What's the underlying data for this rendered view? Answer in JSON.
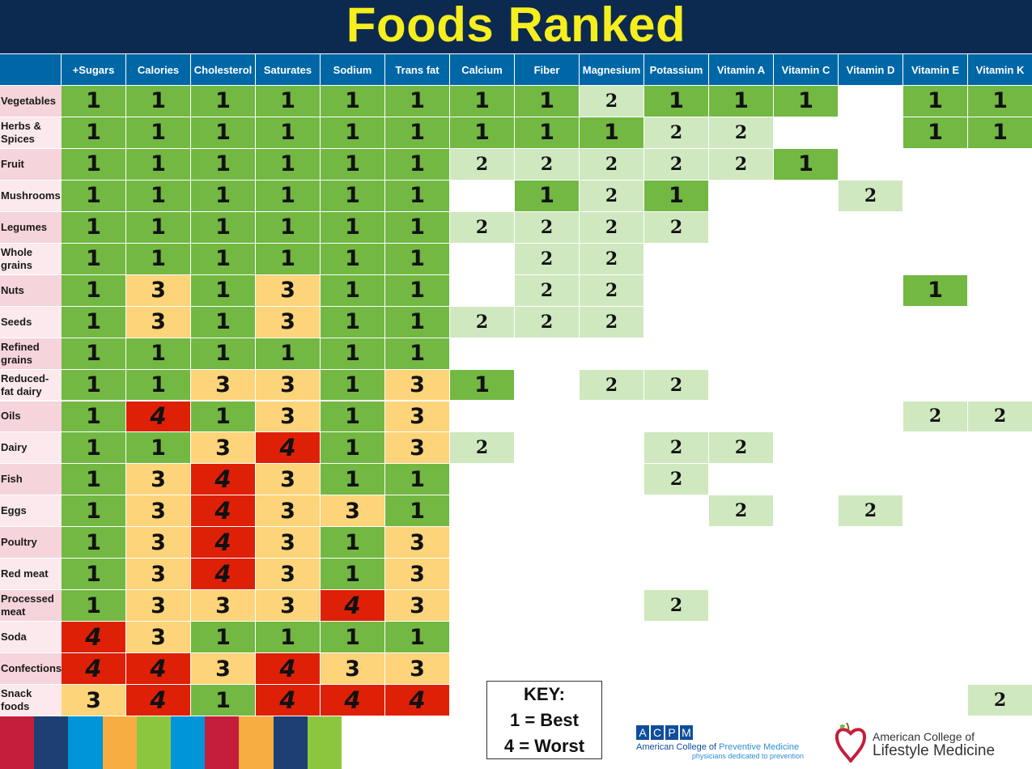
{
  "title": "Foods Ranked",
  "columns": [
    "+Sugars",
    "Calories",
    "Cholesterol",
    "Saturates",
    "Sodium",
    "Trans fat",
    "Calcium",
    "Fiber",
    "Magnesium",
    "Potassium",
    "Vitamin A",
    "Vitamin C",
    "Vitamin D",
    "Vitamin E",
    "Vitamin K"
  ],
  "rows": [
    {
      "label": "Vegetables",
      "ranks": [
        "1",
        "1",
        "1",
        "1",
        "1",
        "1",
        "1",
        "1",
        "2",
        "1",
        "1",
        "1",
        "",
        "1",
        "1"
      ]
    },
    {
      "label": "Herbs & Spices",
      "ranks": [
        "1",
        "1",
        "1",
        "1",
        "1",
        "1",
        "1",
        "1",
        "1",
        "2",
        "2",
        "",
        "",
        "1",
        "1"
      ]
    },
    {
      "label": "Fruit",
      "ranks": [
        "1",
        "1",
        "1",
        "1",
        "1",
        "1",
        "2",
        "2",
        "2",
        "2",
        "2",
        "1",
        "",
        "",
        ""
      ]
    },
    {
      "label": "Mushrooms",
      "ranks": [
        "1",
        "1",
        "1",
        "1",
        "1",
        "1",
        "",
        "1",
        "2",
        "1",
        "",
        "",
        "2",
        "",
        ""
      ]
    },
    {
      "label": "Legumes",
      "ranks": [
        "1",
        "1",
        "1",
        "1",
        "1",
        "1",
        "2",
        "2",
        "2",
        "2",
        "",
        "",
        "",
        "",
        ""
      ]
    },
    {
      "label": "Whole grains",
      "ranks": [
        "1",
        "1",
        "1",
        "1",
        "1",
        "1",
        "",
        "2",
        "2",
        "",
        "",
        "",
        "",
        "",
        ""
      ]
    },
    {
      "label": "Nuts",
      "ranks": [
        "1",
        "3",
        "1",
        "3",
        "1",
        "1",
        "",
        "2",
        "2",
        "",
        "",
        "",
        "",
        "1",
        ""
      ]
    },
    {
      "label": "Seeds",
      "ranks": [
        "1",
        "3",
        "1",
        "3",
        "1",
        "1",
        "2",
        "2",
        "2",
        "",
        "",
        "",
        "",
        "",
        ""
      ]
    },
    {
      "label": "Refined grains",
      "ranks": [
        "1",
        "1",
        "1",
        "1",
        "1",
        "1",
        "",
        "",
        "",
        "",
        "",
        "",
        "",
        "",
        ""
      ]
    },
    {
      "label": "Reduced-fat dairy",
      "ranks": [
        "1",
        "1",
        "3",
        "3",
        "1",
        "3",
        "1",
        "",
        "2",
        "2",
        "",
        "",
        "",
        "",
        ""
      ]
    },
    {
      "label": "Oils",
      "ranks": [
        "1",
        "4",
        "1",
        "3",
        "1",
        "3",
        "",
        "",
        "",
        "",
        "",
        "",
        "",
        "2",
        "2"
      ]
    },
    {
      "label": "Dairy",
      "ranks": [
        "1",
        "1",
        "3",
        "4",
        "1",
        "3",
        "2",
        "",
        "",
        "2",
        "2",
        "",
        "",
        "",
        ""
      ]
    },
    {
      "label": "Fish",
      "ranks": [
        "1",
        "3",
        "4",
        "3",
        "1",
        "1",
        "",
        "",
        "",
        "2",
        "",
        "",
        "",
        "",
        ""
      ]
    },
    {
      "label": "Eggs",
      "ranks": [
        "1",
        "3",
        "4",
        "3",
        "3",
        "1",
        "",
        "",
        "",
        "",
        "2",
        "",
        "2",
        "",
        ""
      ]
    },
    {
      "label": "Poultry",
      "ranks": [
        "1",
        "3",
        "4",
        "3",
        "1",
        "3",
        "",
        "",
        "",
        "",
        "",
        "",
        "",
        "",
        ""
      ]
    },
    {
      "label": "Red meat",
      "ranks": [
        "1",
        "3",
        "4",
        "3",
        "1",
        "3",
        "",
        "",
        "",
        "",
        "",
        "",
        "",
        "",
        ""
      ]
    },
    {
      "label": "Processed meat",
      "ranks": [
        "1",
        "3",
        "3",
        "3",
        "4",
        "3",
        "",
        "",
        "",
        "2",
        "",
        "",
        "",
        "",
        ""
      ]
    },
    {
      "label": "Soda",
      "ranks": [
        "4",
        "3",
        "1",
        "1",
        "1",
        "1",
        "",
        "",
        "",
        "",
        "",
        "",
        "",
        "",
        ""
      ]
    },
    {
      "label": "Confections",
      "ranks": [
        "4",
        "4",
        "3",
        "4",
        "3",
        "3",
        "",
        "",
        "",
        "",
        "",
        "",
        "",
        "",
        ""
      ]
    },
    {
      "label": "Snack foods",
      "ranks": [
        "3",
        "4",
        "1",
        "4",
        "4",
        "4",
        "",
        "",
        "",
        "",
        "",
        "",
        "",
        "",
        "2"
      ]
    }
  ],
  "rank_colors": {
    "1": "#72b843",
    "2": "#cfe8bf",
    "3": "#fdd47a",
    "4": "#de2007"
  },
  "key": {
    "title": "KEY:",
    "best": "1 = Best",
    "worst": "4 = Worst"
  },
  "color_strip": [
    "#c41e3a",
    "#1d3f73",
    "#0095d9",
    "#f8ad42",
    "#8cc63f",
    "#0095d9",
    "#c41e3a",
    "#f8ad42",
    "#1d3f73",
    "#8cc63f"
  ],
  "acpm": {
    "letters": [
      "A",
      "C",
      "P",
      "M"
    ],
    "name_prefix": "American College of ",
    "name_highlight": "Preventive Medicine",
    "tagline": "physicians dedicated to prevention",
    "color": "#0f4e9b"
  },
  "aclm": {
    "line1": "American College of",
    "line2": "Lifestyle Medicine",
    "heart_color": "#c41e3a",
    "leaf_color": "#72b843"
  }
}
